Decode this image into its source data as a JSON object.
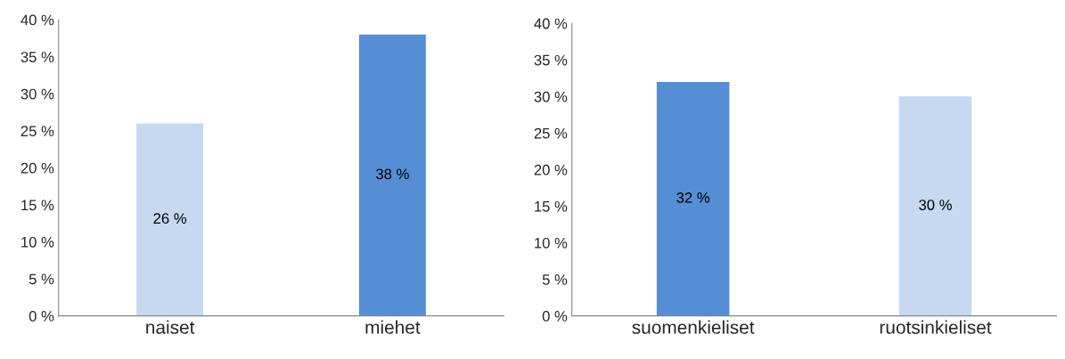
{
  "chart_data": [
    {
      "type": "bar",
      "categories": [
        "naiset",
        "miehet"
      ],
      "values": [
        26,
        38
      ],
      "colors": [
        "#c6d9f1",
        "#558ed5"
      ],
      "value_labels": [
        "26 %",
        "38 %"
      ],
      "ylim": [
        0,
        40
      ],
      "yticks": [
        {
          "value": 0,
          "label": "0 %"
        },
        {
          "value": 5,
          "label": "5 %"
        },
        {
          "value": 10,
          "label": "10 %"
        },
        {
          "value": 15,
          "label": "15 %"
        },
        {
          "value": 20,
          "label": "20 %"
        },
        {
          "value": 25,
          "label": "25 %"
        },
        {
          "value": 30,
          "label": "30 %"
        },
        {
          "value": 35,
          "label": "35 %"
        },
        {
          "value": 40,
          "label": "40 %"
        }
      ]
    },
    {
      "type": "bar",
      "categories": [
        "suomenkieliset",
        "ruotsinkieliset"
      ],
      "values": [
        32,
        30
      ],
      "colors": [
        "#558ed5",
        "#c6d9f1"
      ],
      "value_labels": [
        "32 %",
        "30 %"
      ],
      "ylim": [
        0,
        40
      ],
      "yticks": [
        {
          "value": 0,
          "label": "0 %"
        },
        {
          "value": 5,
          "label": "5 %"
        },
        {
          "value": 10,
          "label": "10 %"
        },
        {
          "value": 15,
          "label": "15 %"
        },
        {
          "value": 20,
          "label": "20 %"
        },
        {
          "value": 25,
          "label": "25 %"
        },
        {
          "value": 30,
          "label": "30 %"
        },
        {
          "value": 35,
          "label": "35 %"
        },
        {
          "value": 40,
          "label": "40 %"
        }
      ]
    }
  ]
}
